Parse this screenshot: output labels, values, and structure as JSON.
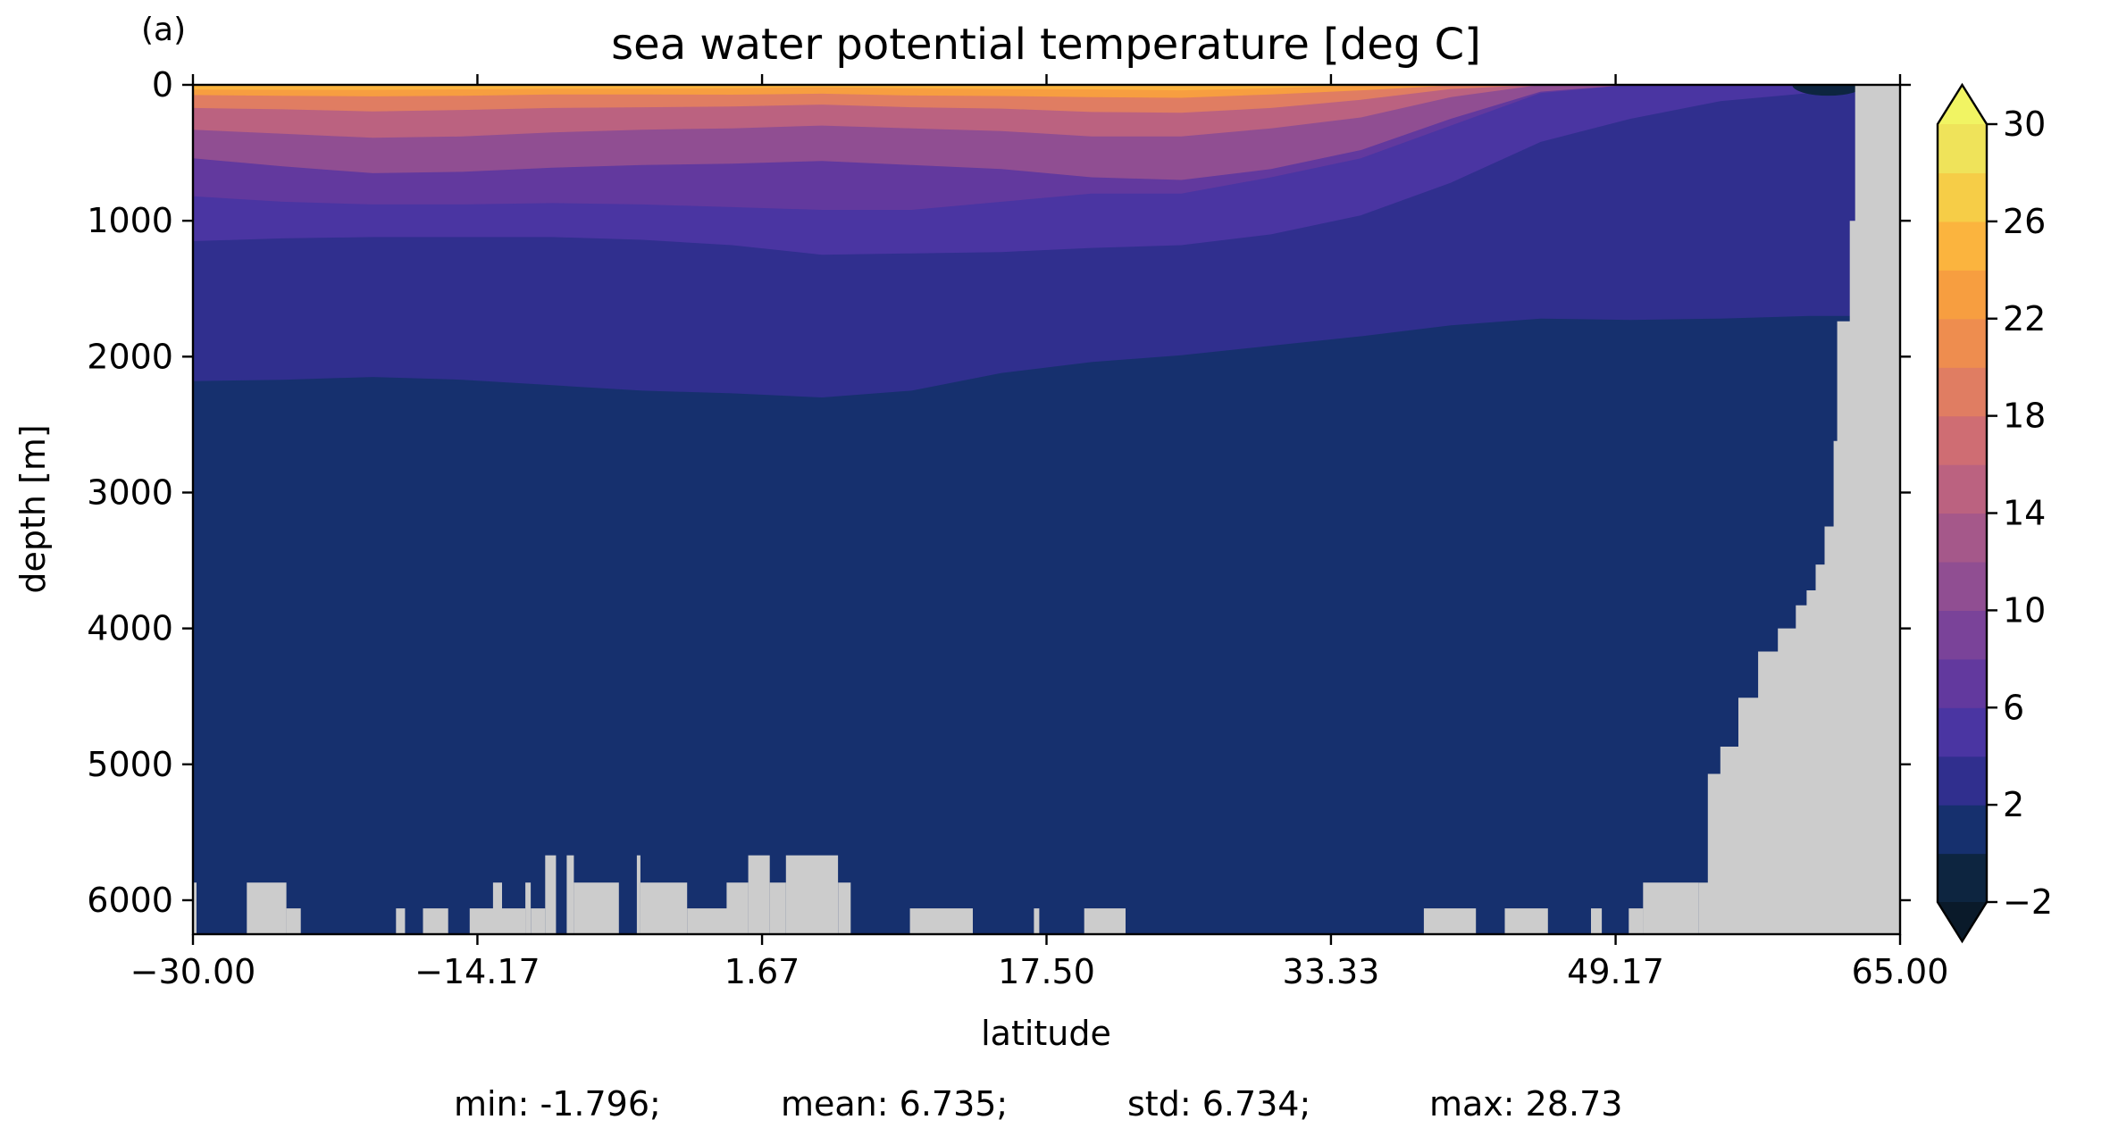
{
  "chart_data": {
    "type": "heatmap",
    "panel_label": "(a)",
    "title": "sea water potential temperature [deg C]",
    "xlabel": "latitude",
    "ylabel": "depth [m]",
    "xlim": [
      -30.0,
      65.0
    ],
    "ylim": [
      6250,
      0
    ],
    "y_inverted": true,
    "x_ticks": [
      -30.0,
      -14.17,
      1.67,
      17.5,
      33.33,
      49.17,
      65.0
    ],
    "x_tick_labels": [
      "−30.00",
      "−14.17",
      "1.67",
      "17.50",
      "33.33",
      "49.17",
      "65.00"
    ],
    "y_ticks": [
      0,
      1000,
      2000,
      3000,
      4000,
      5000,
      6000
    ],
    "y_tick_labels": [
      "0",
      "1000",
      "2000",
      "3000",
      "4000",
      "5000",
      "6000"
    ],
    "land_color": "#cccccc",
    "colorbar": {
      "levels": [
        -2,
        0,
        2,
        4,
        6,
        8,
        10,
        12,
        14,
        16,
        18,
        20,
        22,
        24,
        26,
        28,
        30
      ],
      "tick_values": [
        -2,
        2,
        6,
        10,
        14,
        18,
        22,
        26,
        30
      ],
      "tick_labels": [
        "−2",
        "2",
        "6",
        "10",
        "14",
        "18",
        "22",
        "26",
        "30"
      ],
      "extend": "both",
      "colors": [
        "#0d2540",
        "#16306e",
        "#302f8e",
        "#4a35a2",
        "#62399e",
        "#7a4399",
        "#904e92",
        "#a5588a",
        "#bb6280",
        "#cf6d73",
        "#e07d62",
        "#ee8d4f",
        "#f79e40",
        "#fbb43e",
        "#f6cd47",
        "#efe35a"
      ],
      "under_color": "#0a1a2a",
      "over_color": "#f1f463"
    },
    "isotherm_depths": {
      "x": [
        -30,
        -25,
        -20,
        -15,
        -10,
        -5,
        0,
        5,
        10,
        15,
        20,
        25,
        30,
        35,
        40,
        45,
        50,
        55,
        60,
        62
      ],
      "isotherms": [
        {
          "temp": 24,
          "depth": [
            35,
            36,
            37,
            33,
            28,
            28,
            25,
            18,
            25,
            30,
            33,
            40,
            25,
            5,
            0,
            0,
            0,
            0,
            0,
            0
          ]
        },
        {
          "temp": 20,
          "depth": [
            75,
            80,
            85,
            80,
            70,
            70,
            72,
            65,
            78,
            82,
            90,
            95,
            70,
            40,
            5,
            0,
            0,
            0,
            0,
            0
          ]
        },
        {
          "temp": 16,
          "depth": [
            170,
            180,
            195,
            185,
            170,
            165,
            160,
            145,
            165,
            175,
            200,
            205,
            170,
            110,
            30,
            0,
            0,
            0,
            0,
            0
          ]
        },
        {
          "temp": 12,
          "depth": [
            330,
            360,
            390,
            380,
            350,
            330,
            320,
            300,
            320,
            340,
            380,
            380,
            320,
            240,
            90,
            0,
            0,
            0,
            0,
            0
          ]
        },
        {
          "temp": 8,
          "depth": [
            540,
            600,
            650,
            640,
            610,
            590,
            580,
            560,
            590,
            620,
            680,
            700,
            620,
            480,
            250,
            50,
            0,
            0,
            0,
            0
          ]
        },
        {
          "temp": 6,
          "depth": [
            820,
            860,
            880,
            880,
            870,
            880,
            900,
            920,
            920,
            860,
            800,
            800,
            680,
            540,
            300,
            60,
            0,
            0,
            0,
            0
          ]
        },
        {
          "temp": 4,
          "depth": [
            1150,
            1130,
            1120,
            1120,
            1120,
            1140,
            1180,
            1250,
            1240,
            1230,
            1200,
            1180,
            1100,
            960,
            720,
            420,
            250,
            120,
            60,
            40
          ]
        },
        {
          "temp": 2,
          "depth": [
            2180,
            2170,
            2150,
            2170,
            2210,
            2250,
            2270,
            2300,
            2250,
            2120,
            2040,
            1990,
            1920,
            1850,
            1770,
            1720,
            1730,
            1720,
            1700,
            1700
          ]
        },
        {
          "temp": 0,
          "depth": [
            6250,
            6250,
            6250,
            6250,
            6250,
            6250,
            6250,
            6250,
            6250,
            6250,
            6250,
            6250,
            6250,
            6250,
            6250,
            6250,
            6250,
            6250,
            6250,
            6250
          ]
        }
      ]
    },
    "cold_surface_patch": {
      "lat": [
        59,
        63
      ],
      "depth": [
        0,
        80
      ],
      "temp": -1.5
    },
    "bottom_land": [
      {
        "lat": [
          -30,
          -29.8
        ],
        "top": 5870
      },
      {
        "lat": [
          -27.0,
          -24.8
        ],
        "top": 5870
      },
      {
        "lat": [
          -24.8,
          -24.0
        ],
        "top": 6060
      },
      {
        "lat": [
          -18.7,
          -18.2
        ],
        "top": 6060
      },
      {
        "lat": [
          -17.2,
          -15.8
        ],
        "top": 6060
      },
      {
        "lat": [
          -14.6,
          -13.3
        ],
        "top": 6060
      },
      {
        "lat": [
          -13.3,
          -12.8
        ],
        "top": 5870
      },
      {
        "lat": [
          -12.8,
          -11.5
        ],
        "top": 6060
      },
      {
        "lat": [
          -11.5,
          -11.2
        ],
        "top": 5870
      },
      {
        "lat": [
          -11.2,
          -10.4
        ],
        "top": 6060
      },
      {
        "lat": [
          -10.4,
          -9.8
        ],
        "top": 5670
      },
      {
        "lat": [
          -9.2,
          -8.8
        ],
        "top": 5670
      },
      {
        "lat": [
          -8.8,
          -6.3
        ],
        "top": 5870
      },
      {
        "lat": [
          -5.3,
          -5.1
        ],
        "top": 5670
      },
      {
        "lat": [
          -5.1,
          -2.5
        ],
        "top": 5870
      },
      {
        "lat": [
          -2.5,
          -0.3
        ],
        "top": 6060
      },
      {
        "lat": [
          -0.3,
          0.9
        ],
        "top": 5870
      },
      {
        "lat": [
          0.9,
          2.1
        ],
        "top": 5670
      },
      {
        "lat": [
          2.1,
          3.0
        ],
        "top": 5870
      },
      {
        "lat": [
          3.0,
          5.9
        ],
        "top": 5670
      },
      {
        "lat": [
          5.9,
          6.6
        ],
        "top": 5870
      },
      {
        "lat": [
          9.9,
          13.4
        ],
        "top": 6060
      },
      {
        "lat": [
          16.8,
          17.1
        ],
        "top": 6060
      },
      {
        "lat": [
          19.6,
          21.9
        ],
        "top": 6060
      },
      {
        "lat": [
          38.5,
          41.4
        ],
        "top": 6060
      },
      {
        "lat": [
          43.0,
          45.4
        ],
        "top": 6060
      },
      {
        "lat": [
          47.8,
          48.4
        ],
        "top": 6060
      },
      {
        "lat": [
          49.9,
          50.7
        ],
        "top": 6060
      },
      {
        "lat": [
          50.7,
          53.8
        ],
        "top": 5870
      }
    ],
    "east_land_boundary": {
      "lat": [
        53.8,
        53.8,
        54.3,
        55.0,
        56.0,
        57.1,
        58.2,
        59.2,
        59.8,
        60.3,
        60.8,
        61.3,
        61.5,
        62.2,
        62.5
      ],
      "depth": [
        6250,
        5870,
        5070,
        4870,
        4510,
        4170,
        4000,
        3830,
        3720,
        3530,
        3250,
        2620,
        1740,
        1000,
        0
      ]
    },
    "stats": {
      "min": "min: -1.796;",
      "mean": "mean: 6.735;",
      "std": "std: 6.734;",
      "max": "max: 28.73"
    }
  }
}
